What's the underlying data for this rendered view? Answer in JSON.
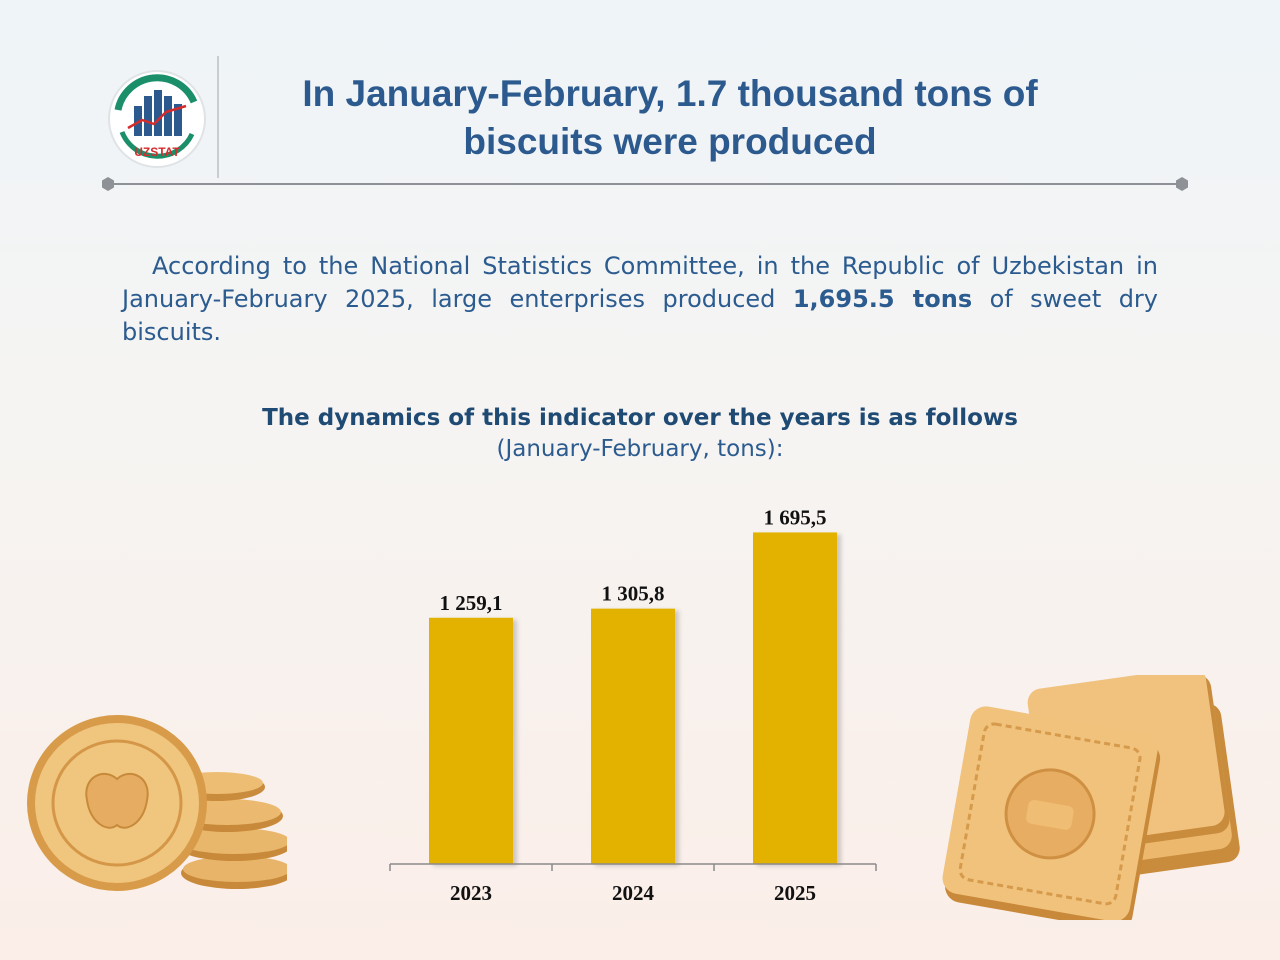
{
  "header": {
    "logo_text": "UZSTAT",
    "title_line1": "In January-February, 1.7 thousand tons of",
    "title_line2": "biscuits were produced"
  },
  "intro": {
    "text_before": "According to the National Statistics Committee, in the Republic of Uzbekistan in January-February 2025, large enterprises produced ",
    "highlight": "1,695.5 tons",
    "text_after": " of sweet dry biscuits."
  },
  "chart_heading": "The dynamics of this indicator over the years is as follows",
  "chart_subheading": "(January-February, tons):",
  "colors": {
    "bar": "#e3b100",
    "title": "#2d5a8e",
    "text": "#2b5b8f",
    "logo_green": "#1a8f6a",
    "logo_red": "#d62b2b"
  },
  "chart_data": {
    "type": "bar",
    "categories": [
      "2023",
      "2024",
      "2025"
    ],
    "values": [
      1259.1,
      1305.8,
      1695.5
    ],
    "value_labels": [
      "1 259,1",
      "1 305,8",
      "1 695,5"
    ],
    "ylim": [
      0,
      1800
    ],
    "grid": false,
    "legend": "none"
  }
}
